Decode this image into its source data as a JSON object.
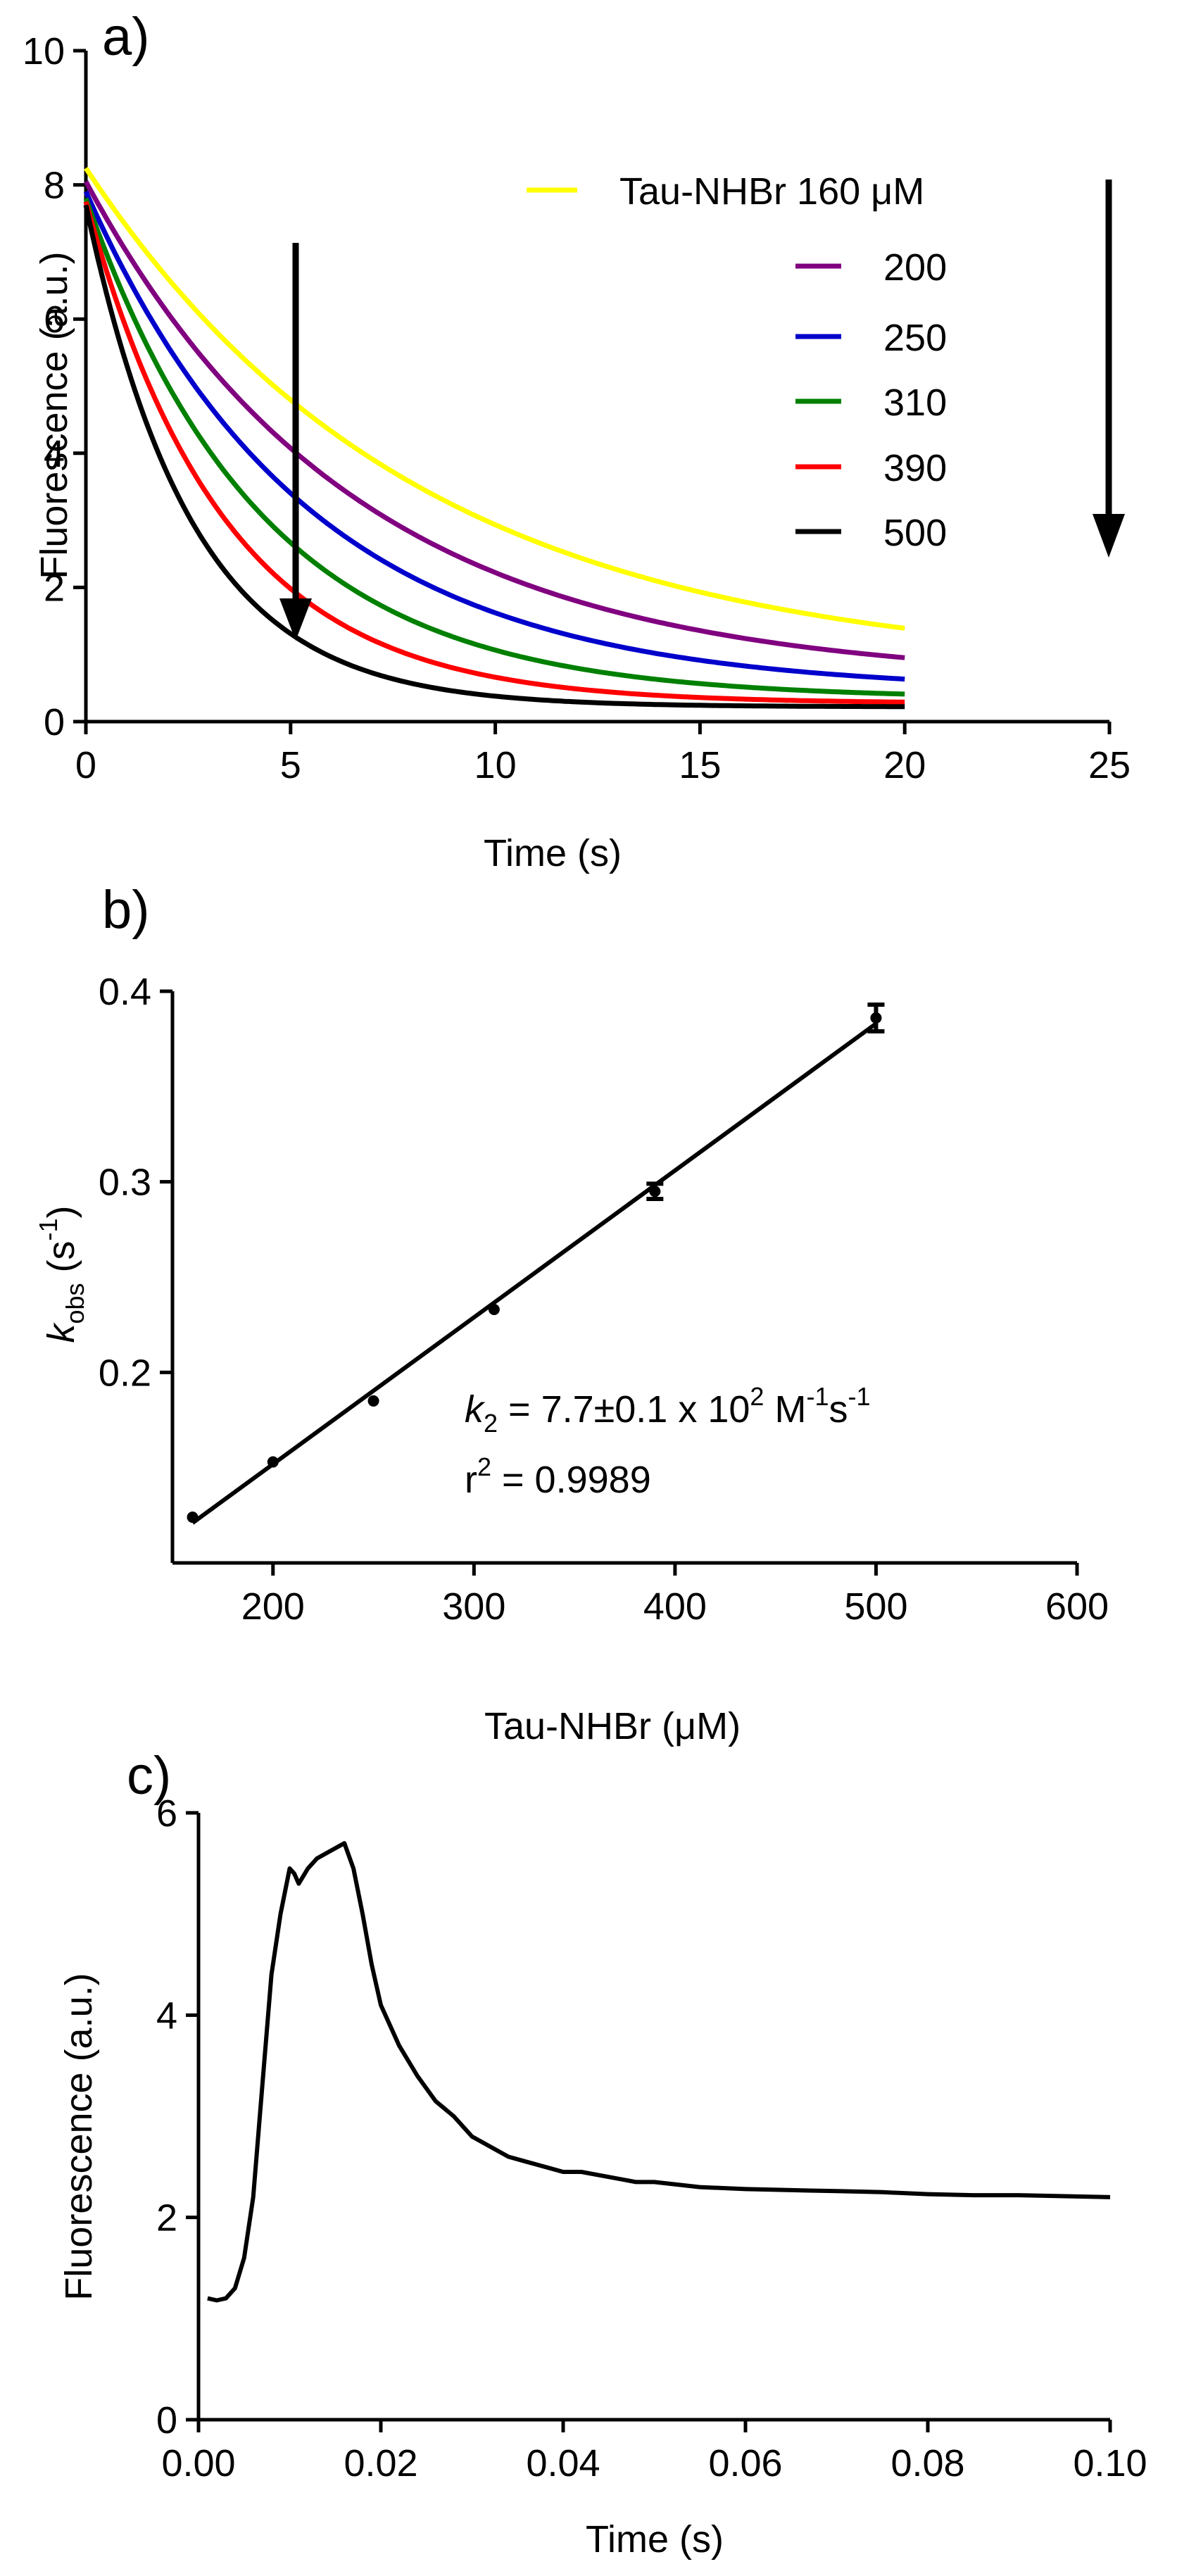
{
  "chart_data": [
    {
      "panel_label": "a)",
      "type": "line",
      "xlabel": "Time (s)",
      "ylabel": "Fluorescence (a.u.)",
      "xlim": [
        0,
        25
      ],
      "ylim": [
        0,
        10
      ],
      "xticks": [
        "0",
        "5",
        "10",
        "15",
        "20",
        "25"
      ],
      "yticks": [
        "0",
        "2",
        "4",
        "6",
        "8",
        "10"
      ],
      "legend_position": "top-right",
      "legend_title": "Tau-NHBr 160 μM",
      "arrow_note": "downward arrows indicate increasing Tau-NHBr concentration",
      "series": [
        {
          "name": "Tau-NHBr 160 μM",
          "color": "#ffff00",
          "y0": 8.25,
          "k": 0.1237,
          "yinf": 0.76,
          "x": [
            0,
            20
          ]
        },
        {
          "name": "200",
          "color": "#800080",
          "y0": 8.05,
          "k": 0.1525,
          "yinf": 0.6,
          "x": [
            0,
            20
          ]
        },
        {
          "name": "250",
          "color": "#0000cc",
          "y0": 7.9,
          "k": 0.185,
          "yinf": 0.45,
          "x": [
            0,
            20
          ]
        },
        {
          "name": "310",
          "color": "#008000",
          "y0": 7.8,
          "k": 0.233,
          "yinf": 0.34,
          "x": [
            0,
            20
          ]
        },
        {
          "name": "390",
          "color": "#ff0000",
          "y0": 7.75,
          "k": 0.295,
          "yinf": 0.27,
          "x": [
            0,
            20
          ]
        },
        {
          "name": "500",
          "color": "#000000",
          "y0": 7.7,
          "k": 0.385,
          "yinf": 0.22,
          "x": [
            0,
            20
          ]
        }
      ]
    },
    {
      "panel_label": "b)",
      "type": "scatter",
      "xlabel_main": "Tau-NHBr (",
      "xlabel_unit": "μM",
      "xlabel_close": ")",
      "ylabel_k": "k",
      "ylabel_sub": "obs",
      "ylabel_rest": " (s",
      "ylabel_sup": "-1",
      "ylabel_close": ")",
      "xlim": [
        150,
        600
      ],
      "ylim": [
        0.1,
        0.4
      ],
      "xticks": [
        200,
        300,
        400,
        500,
        600
      ],
      "yticks": [
        0.2,
        0.3,
        0.4
      ],
      "ytick_labels": [
        "0.2",
        "0.3",
        "0.4"
      ],
      "points": [
        {
          "x": 160,
          "y": 0.124,
          "err": 0.002
        },
        {
          "x": 200,
          "y": 0.153,
          "err": 0.002
        },
        {
          "x": 250,
          "y": 0.185,
          "err": 0.002
        },
        {
          "x": 310,
          "y": 0.233,
          "err": 0.002
        },
        {
          "x": 390,
          "y": 0.295,
          "err": 0.004
        },
        {
          "x": 500,
          "y": 0.386,
          "err": 0.007
        }
      ],
      "fit": {
        "x": [
          160,
          500
        ],
        "y": [
          0.121,
          0.383
        ]
      },
      "annotation_k": "k",
      "annotation_ksub": "2",
      "annotation_value": " = 7.7±0.1 x 10",
      "annotation_exp": "2",
      "annotation_unit1": " M",
      "annotation_unit1_sup": "-1",
      "annotation_unit2": "s",
      "annotation_unit2_sup": "-1",
      "r2_r": "r",
      "r2_sup": "2",
      "r2_value": " = 0.9989"
    },
    {
      "panel_label": "c)",
      "type": "line",
      "xlabel": "Time (s)",
      "ylabel": "Fluorescence (a.u.)",
      "xlim": [
        0,
        0.1
      ],
      "ylim": [
        0,
        6
      ],
      "xticks": [
        "0.00",
        "0.02",
        "0.04",
        "0.06",
        "0.08",
        "0.10"
      ],
      "yticks": [
        "0",
        "2",
        "4",
        "6"
      ],
      "series": [
        {
          "color": "#000000",
          "x": [
            0.001,
            0.002,
            0.003,
            0.004,
            0.005,
            0.006,
            0.007,
            0.008,
            0.009,
            0.01,
            0.0105,
            0.011,
            0.012,
            0.013,
            0.014,
            0.015,
            0.016,
            0.017,
            0.018,
            0.019,
            0.02,
            0.022,
            0.024,
            0.026,
            0.028,
            0.03,
            0.032,
            0.034,
            0.036,
            0.038,
            0.04,
            0.042,
            0.045,
            0.048,
            0.05,
            0.055,
            0.06,
            0.065,
            0.07,
            0.075,
            0.08,
            0.085,
            0.09,
            0.095,
            0.1
          ],
          "y": [
            1.2,
            1.18,
            1.2,
            1.3,
            1.6,
            2.2,
            3.3,
            4.4,
            5.0,
            5.45,
            5.4,
            5.3,
            5.45,
            5.55,
            5.6,
            5.65,
            5.7,
            5.45,
            5.0,
            4.5,
            4.1,
            3.7,
            3.4,
            3.15,
            3.0,
            2.8,
            2.7,
            2.6,
            2.55,
            2.5,
            2.45,
            2.45,
            2.4,
            2.35,
            2.35,
            2.3,
            2.28,
            2.27,
            2.26,
            2.25,
            2.23,
            2.22,
            2.22,
            2.21,
            2.2
          ]
        }
      ]
    }
  ]
}
